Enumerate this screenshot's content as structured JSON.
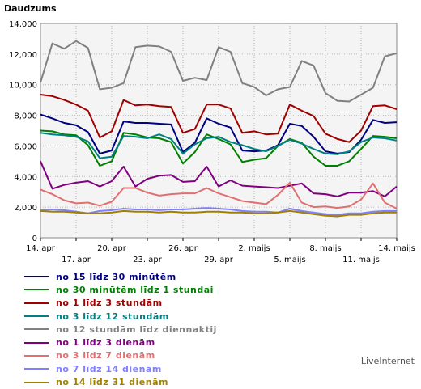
{
  "chart_data": {
    "type": "line",
    "ylabel": "Daudzums",
    "ylim": [
      0,
      14000
    ],
    "yticks": [
      0,
      2000,
      4000,
      6000,
      8000,
      10000,
      12000,
      14000
    ],
    "ytick_labels": [
      "0",
      "2,000",
      "4,000",
      "6,000",
      "8,000",
      "10,000",
      "12,000",
      "14,000"
    ],
    "x_count": 31,
    "xticks_top": [
      {
        "i": 0,
        "label": "14. apr"
      },
      {
        "i": 6,
        "label": "20. apr"
      },
      {
        "i": 12,
        "label": "26. apr"
      },
      {
        "i": 18,
        "label": "2. maijs"
      },
      {
        "i": 24,
        "label": "8. maijs"
      },
      {
        "i": 30,
        "label": "14. maijs"
      }
    ],
    "xticks_bottom": [
      {
        "i": 3,
        "label": "17. apr"
      },
      {
        "i": 9,
        "label": "23. apr"
      },
      {
        "i": 15,
        "label": "29. apr"
      },
      {
        "i": 21,
        "label": "5. maijs"
      },
      {
        "i": 27,
        "label": "11. maijs"
      }
    ],
    "grid": true,
    "legend": "bottom",
    "series": [
      {
        "name": "no 15 līdz 30 minūtēm",
        "color": "#000080",
        "values": [
          8050,
          7800,
          7500,
          7350,
          6900,
          5500,
          5700,
          7600,
          7500,
          7500,
          7450,
          7400,
          5600,
          6200,
          7800,
          7450,
          7200,
          5700,
          5650,
          5700,
          6050,
          7450,
          7300,
          6600,
          5650,
          5500,
          5600,
          6400,
          7700,
          7500,
          7550
        ]
      },
      {
        "name": "no 30 minūtēm līdz 1 stundai",
        "color": "#008000",
        "values": [
          7000,
          6950,
          6750,
          6700,
          6050,
          4700,
          5000,
          6850,
          6750,
          6550,
          6500,
          6250,
          4850,
          5600,
          6750,
          6450,
          6100,
          4950,
          5100,
          5200,
          6000,
          6450,
          6200,
          5300,
          4700,
          4700,
          5000,
          5800,
          6650,
          6600,
          6500
        ]
      },
      {
        "name": "no 1 līdz 3 stundām",
        "color": "#a00000",
        "values": [
          9350,
          9250,
          9000,
          8700,
          8300,
          6550,
          6950,
          9000,
          8650,
          8700,
          8600,
          8550,
          6850,
          7100,
          8700,
          8700,
          8450,
          6850,
          6950,
          6750,
          6800,
          8700,
          8300,
          7950,
          6800,
          6450,
          6250,
          7000,
          8600,
          8650,
          8400
        ]
      },
      {
        "name": "no 3 līdz 12 stundām",
        "color": "#008080",
        "values": [
          6850,
          6750,
          6700,
          6600,
          6300,
          5200,
          5300,
          6650,
          6600,
          6500,
          6750,
          6450,
          5500,
          6100,
          6500,
          6600,
          6250,
          6050,
          5800,
          5650,
          6000,
          6400,
          6150,
          5800,
          5500,
          5450,
          5650,
          6250,
          6550,
          6500,
          6350
        ]
      },
      {
        "name": "no 12 stundām līdz diennaktij",
        "color": "#808080",
        "values": [
          10150,
          12700,
          12350,
          12850,
          12400,
          9700,
          9800,
          10100,
          12450,
          12550,
          12500,
          12150,
          10250,
          10450,
          10300,
          12450,
          12150,
          10100,
          9850,
          9300,
          9700,
          9850,
          11550,
          11250,
          9450,
          8950,
          8900,
          9350,
          9800,
          11850,
          12050
        ]
      },
      {
        "name": "no 1 līdz 3 dienām",
        "color": "#800080",
        "values": [
          5000,
          3200,
          3450,
          3600,
          3700,
          3350,
          3700,
          4650,
          3350,
          3850,
          4050,
          4100,
          3650,
          3700,
          4650,
          3350,
          3750,
          3400,
          3350,
          3300,
          3250,
          3400,
          3550,
          2900,
          2850,
          2700,
          2950,
          2950,
          3050,
          2700,
          3350
        ]
      },
      {
        "name": "no 3 līdz 7 dienām",
        "color": "#e07070",
        "values": [
          3150,
          2850,
          2450,
          2250,
          2300,
          2100,
          2350,
          3250,
          3250,
          2950,
          2750,
          2850,
          2900,
          2900,
          3250,
          2900,
          2650,
          2400,
          2300,
          2200,
          2800,
          3600,
          2300,
          2000,
          2050,
          1950,
          2050,
          2500,
          3550,
          2300,
          1900
        ]
      },
      {
        "name": "no 7 līdz 14 dienām",
        "color": "#8080ff",
        "values": [
          1800,
          1850,
          1800,
          1700,
          1600,
          1750,
          1800,
          1900,
          1850,
          1850,
          1800,
          1850,
          1850,
          1900,
          1950,
          1900,
          1850,
          1750,
          1700,
          1700,
          1650,
          1900,
          1750,
          1650,
          1550,
          1500,
          1600,
          1600,
          1700,
          1750,
          1750
        ]
      },
      {
        "name": "no 14 līdz 31 dienām",
        "color": "#a08000",
        "values": [
          1750,
          1700,
          1700,
          1650,
          1600,
          1600,
          1650,
          1750,
          1700,
          1700,
          1650,
          1700,
          1650,
          1650,
          1700,
          1700,
          1650,
          1650,
          1600,
          1600,
          1650,
          1750,
          1650,
          1550,
          1450,
          1400,
          1500,
          1500,
          1600,
          1650,
          1650
        ]
      }
    ]
  },
  "credit": "LiveInternet"
}
